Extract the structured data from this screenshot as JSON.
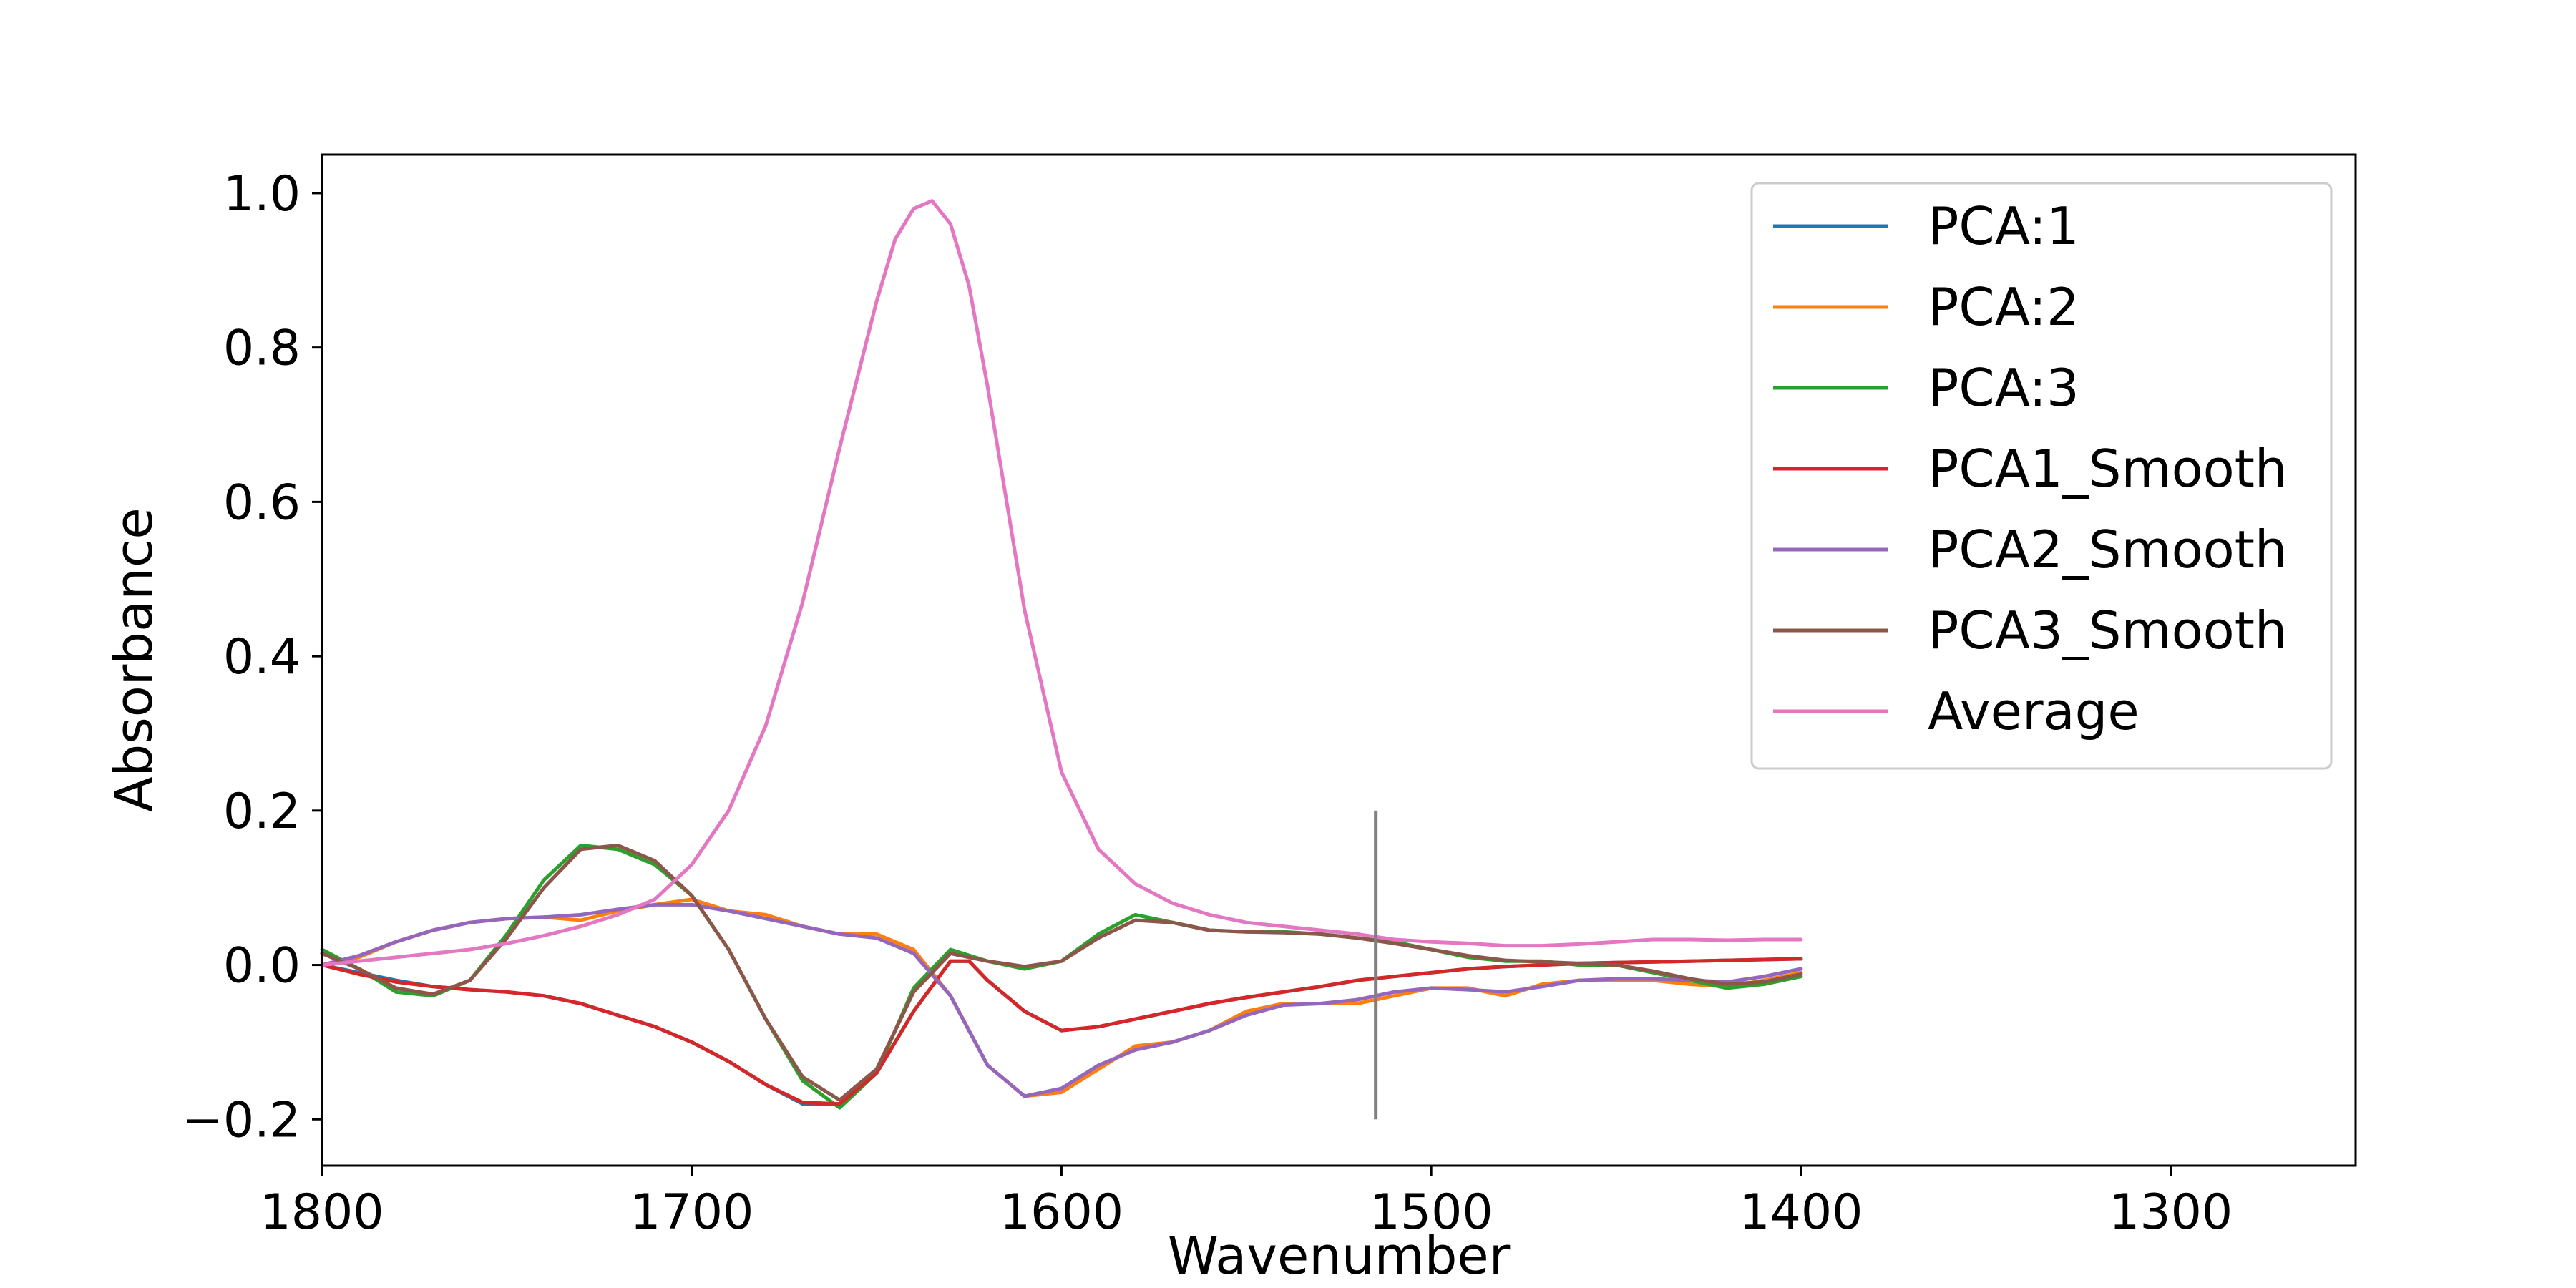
{
  "chart_data": {
    "type": "line",
    "title": "",
    "xlabel": "Wavenumber",
    "ylabel": "Absorbance",
    "xlim": [
      1800,
      1250
    ],
    "ylim": [
      -0.26,
      1.05
    ],
    "x_reversed": true,
    "grid": false,
    "legend_location": "upper right",
    "xticks": [
      1800,
      1700,
      1600,
      1500,
      1400,
      1300
    ],
    "yticks": [
      -0.2,
      0.0,
      0.2,
      0.4,
      0.6,
      0.8,
      1.0
    ],
    "xtick_labels": [
      "1800",
      "1700",
      "1600",
      "1500",
      "1400",
      "1300"
    ],
    "ytick_labels": [
      "−0.2",
      "0.0",
      "0.2",
      "0.4",
      "0.6",
      "0.8",
      "1.0"
    ],
    "vline": {
      "x": 1515,
      "y_from": -0.2,
      "y_to": 0.2,
      "color": "#808080"
    },
    "series": [
      {
        "name": "PCA:1",
        "color": "#1f77b4",
        "x": [
          1800,
          1790,
          1780,
          1770,
          1760,
          1750,
          1740,
          1730,
          1720,
          1710,
          1700,
          1690,
          1680,
          1670,
          1660,
          1650,
          1640,
          1630,
          1625,
          1620,
          1610,
          1600,
          1590,
          1580,
          1570,
          1560,
          1550,
          1540,
          1530,
          1520,
          1510,
          1500,
          1490,
          1480,
          1470,
          1460,
          1450,
          1440,
          1430,
          1420,
          1410,
          1400
        ],
        "y": [
          0.0,
          -0.01,
          -0.02,
          -0.028,
          -0.032,
          -0.035,
          -0.04,
          -0.05,
          -0.065,
          -0.08,
          -0.1,
          -0.125,
          -0.155,
          -0.18,
          -0.18,
          -0.14,
          -0.06,
          0.005,
          0.005,
          -0.02,
          -0.06,
          -0.085,
          -0.08,
          -0.07,
          -0.06,
          -0.05,
          -0.042,
          -0.035,
          -0.028,
          -0.02,
          -0.015,
          -0.01,
          -0.005,
          -0.002,
          0.0,
          0.002,
          0.003,
          0.004,
          0.005,
          0.006,
          0.007,
          0.008
        ]
      },
      {
        "name": "PCA:2",
        "color": "#ff7f0e",
        "x": [
          1800,
          1790,
          1780,
          1770,
          1760,
          1750,
          1740,
          1730,
          1720,
          1710,
          1700,
          1690,
          1680,
          1670,
          1660,
          1650,
          1640,
          1630,
          1620,
          1610,
          1600,
          1590,
          1580,
          1570,
          1560,
          1550,
          1540,
          1530,
          1520,
          1510,
          1500,
          1490,
          1480,
          1470,
          1460,
          1450,
          1440,
          1430,
          1420,
          1410,
          1400
        ],
        "y": [
          0.0,
          0.01,
          0.03,
          0.045,
          0.055,
          0.06,
          0.062,
          0.058,
          0.07,
          0.078,
          0.085,
          0.07,
          0.065,
          0.05,
          0.04,
          0.04,
          0.02,
          -0.04,
          -0.13,
          -0.17,
          -0.165,
          -0.135,
          -0.105,
          -0.1,
          -0.085,
          -0.06,
          -0.05,
          -0.05,
          -0.05,
          -0.04,
          -0.03,
          -0.03,
          -0.04,
          -0.025,
          -0.02,
          -0.02,
          -0.02,
          -0.025,
          -0.028,
          -0.02,
          -0.01
        ]
      },
      {
        "name": "PCA:3",
        "color": "#2ca02c",
        "x": [
          1800,
          1790,
          1780,
          1770,
          1760,
          1750,
          1740,
          1730,
          1720,
          1710,
          1700,
          1690,
          1680,
          1670,
          1660,
          1650,
          1640,
          1630,
          1620,
          1610,
          1600,
          1590,
          1580,
          1570,
          1560,
          1550,
          1540,
          1530,
          1520,
          1510,
          1500,
          1490,
          1480,
          1470,
          1460,
          1450,
          1440,
          1430,
          1420,
          1410,
          1400
        ],
        "y": [
          0.02,
          -0.005,
          -0.035,
          -0.04,
          -0.02,
          0.04,
          0.11,
          0.155,
          0.15,
          0.13,
          0.09,
          0.02,
          -0.07,
          -0.15,
          -0.185,
          -0.14,
          -0.03,
          0.02,
          0.005,
          -0.005,
          0.005,
          0.04,
          0.065,
          0.055,
          0.045,
          0.043,
          0.043,
          0.04,
          0.035,
          0.03,
          0.02,
          0.01,
          0.005,
          0.005,
          0.0,
          0.0,
          -0.01,
          -0.02,
          -0.03,
          -0.025,
          -0.015
        ]
      },
      {
        "name": "PCA1_Smooth",
        "color": "#d62728",
        "x": [
          1800,
          1790,
          1780,
          1770,
          1760,
          1750,
          1740,
          1730,
          1720,
          1710,
          1700,
          1690,
          1680,
          1670,
          1660,
          1650,
          1640,
          1630,
          1625,
          1620,
          1610,
          1600,
          1590,
          1580,
          1570,
          1560,
          1550,
          1540,
          1530,
          1520,
          1510,
          1500,
          1490,
          1480,
          1470,
          1460,
          1450,
          1440,
          1430,
          1420,
          1410,
          1400
        ],
        "y": [
          0.0,
          -0.012,
          -0.022,
          -0.028,
          -0.032,
          -0.035,
          -0.04,
          -0.05,
          -0.065,
          -0.08,
          -0.1,
          -0.125,
          -0.155,
          -0.178,
          -0.18,
          -0.14,
          -0.06,
          0.005,
          0.005,
          -0.02,
          -0.06,
          -0.085,
          -0.08,
          -0.07,
          -0.06,
          -0.05,
          -0.042,
          -0.035,
          -0.028,
          -0.02,
          -0.015,
          -0.01,
          -0.005,
          -0.002,
          0.0,
          0.002,
          0.003,
          0.004,
          0.005,
          0.006,
          0.007,
          0.008
        ]
      },
      {
        "name": "PCA2_Smooth",
        "color": "#9467bd",
        "x": [
          1800,
          1790,
          1780,
          1770,
          1760,
          1750,
          1740,
          1730,
          1720,
          1710,
          1700,
          1690,
          1680,
          1670,
          1660,
          1650,
          1640,
          1630,
          1620,
          1610,
          1600,
          1590,
          1580,
          1570,
          1560,
          1550,
          1540,
          1530,
          1520,
          1510,
          1500,
          1490,
          1480,
          1470,
          1460,
          1450,
          1440,
          1430,
          1420,
          1410,
          1400
        ],
        "y": [
          0.0,
          0.012,
          0.03,
          0.045,
          0.055,
          0.06,
          0.062,
          0.065,
          0.072,
          0.078,
          0.078,
          0.07,
          0.06,
          0.05,
          0.04,
          0.035,
          0.015,
          -0.04,
          -0.13,
          -0.17,
          -0.16,
          -0.13,
          -0.11,
          -0.1,
          -0.085,
          -0.065,
          -0.052,
          -0.05,
          -0.045,
          -0.035,
          -0.03,
          -0.032,
          -0.035,
          -0.028,
          -0.02,
          -0.018,
          -0.018,
          -0.02,
          -0.022,
          -0.015,
          -0.005
        ]
      },
      {
        "name": "PCA3_Smooth",
        "color": "#8c564b",
        "x": [
          1800,
          1790,
          1780,
          1770,
          1760,
          1750,
          1740,
          1730,
          1720,
          1710,
          1700,
          1690,
          1680,
          1670,
          1660,
          1650,
          1640,
          1630,
          1620,
          1610,
          1600,
          1590,
          1580,
          1570,
          1560,
          1550,
          1540,
          1530,
          1520,
          1510,
          1500,
          1490,
          1480,
          1470,
          1460,
          1450,
          1440,
          1430,
          1420,
          1410,
          1400
        ],
        "y": [
          0.015,
          -0.005,
          -0.03,
          -0.038,
          -0.02,
          0.035,
          0.1,
          0.15,
          0.155,
          0.135,
          0.09,
          0.02,
          -0.07,
          -0.145,
          -0.175,
          -0.135,
          -0.035,
          0.015,
          0.005,
          -0.002,
          0.005,
          0.035,
          0.058,
          0.055,
          0.045,
          0.043,
          0.042,
          0.04,
          0.035,
          0.028,
          0.02,
          0.012,
          0.006,
          0.004,
          0.002,
          0.0,
          -0.008,
          -0.018,
          -0.025,
          -0.022,
          -0.012
        ]
      },
      {
        "name": "Average",
        "color": "#e377c2",
        "x": [
          1800,
          1790,
          1780,
          1770,
          1760,
          1750,
          1740,
          1730,
          1720,
          1710,
          1700,
          1690,
          1680,
          1670,
          1660,
          1650,
          1645,
          1640,
          1635,
          1630,
          1625,
          1620,
          1610,
          1600,
          1590,
          1580,
          1570,
          1560,
          1550,
          1540,
          1530,
          1520,
          1510,
          1500,
          1490,
          1480,
          1470,
          1460,
          1450,
          1440,
          1430,
          1420,
          1410,
          1400
        ],
        "y": [
          0.0,
          0.005,
          0.01,
          0.015,
          0.02,
          0.028,
          0.038,
          0.05,
          0.065,
          0.085,
          0.13,
          0.2,
          0.31,
          0.47,
          0.67,
          0.86,
          0.94,
          0.98,
          0.99,
          0.96,
          0.88,
          0.75,
          0.46,
          0.25,
          0.15,
          0.105,
          0.08,
          0.065,
          0.055,
          0.05,
          0.045,
          0.04,
          0.033,
          0.03,
          0.028,
          0.025,
          0.025,
          0.027,
          0.03,
          0.033,
          0.033,
          0.032,
          0.033,
          0.033
        ]
      }
    ]
  }
}
